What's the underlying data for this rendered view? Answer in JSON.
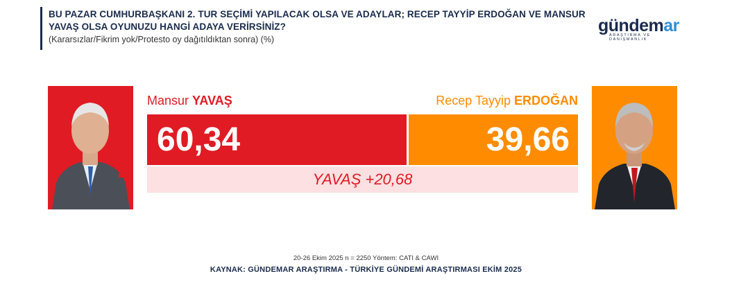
{
  "header": {
    "title": "BU PAZAR CUMHURBAŞKANI 2. TUR SEÇİMİ YAPILACAK OLSA VE ADAYLAR; RECEP TAYYİP ERDOĞAN VE MANSUR YAVAŞ OLSA OYUNUZU HANGİ ADAYA VERİRSİNİZ?",
    "subtitle": "(Kararsızlar/Fikrim yok/Protesto oy dağıtıldıktan sonra) (%)"
  },
  "logo": {
    "word_main": "gündem",
    "word_accent": "ar",
    "tagline": "ARAŞTIRMA VE DANIŞMANLIK"
  },
  "chart_data": {
    "type": "bar",
    "orientation": "horizontal-stacked",
    "series": [
      {
        "name_first": "Mansur",
        "name_last": "YAVAŞ",
        "value": 60.34,
        "value_label": "60,34",
        "color": "#e01b24"
      },
      {
        "name_first": "Recep Tayyip",
        "name_last": "ERDOĞAN",
        "value": 39.66,
        "value_label": "39,66",
        "color": "#ff8c00"
      }
    ],
    "difference_label": "YAVAŞ +20,68",
    "difference_bg": "#fde0e2"
  },
  "footer": {
    "note": "20-26 Ekim 2025 n = 2250 Yöntem: CATI & CAWI",
    "source": "KAYNAK: GÜNDEMAR ARAŞTIRMA - TÜRKİYE GÜNDEMİ ARAŞTIRMASI EKİM 2025"
  },
  "colors": {
    "navy": "#1a2b4c",
    "red": "#e01b24",
    "orange": "#ff8c00",
    "logo_accent": "#2e8fd6"
  }
}
